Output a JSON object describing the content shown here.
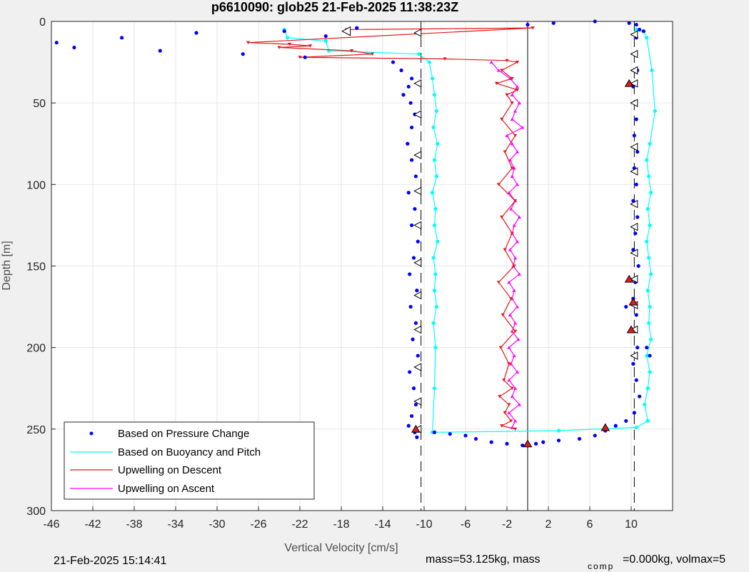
{
  "chart_data": {
    "type": "scatter",
    "title": "p6610090: glob25 21-Feb-2025 11:38:23Z",
    "xlabel": "Vertical Velocity [cm/s]",
    "ylabel": "Depth [m]",
    "xlim": [
      -46,
      14
    ],
    "ylim": [
      0,
      300
    ],
    "y_reversed": true,
    "grid": true,
    "legend_position": "bottom-left",
    "xticks": [
      -46,
      -42,
      -38,
      -34,
      -30,
      -26,
      -22,
      -18,
      -14,
      -10,
      -6,
      -2,
      2,
      6,
      10
    ],
    "yticks": [
      0,
      50,
      100,
      150,
      200,
      250,
      300
    ],
    "reference_lines": [
      {
        "x": -10.3,
        "style": "dashed"
      },
      {
        "x": 10.3,
        "style": "dashed"
      },
      {
        "x": 0,
        "style": "solid"
      }
    ],
    "series": [
      {
        "name": "Based on Pressure Change",
        "color": "#0000ff",
        "marker": "dot",
        "x": [
          -45.5,
          -43.8,
          -39.2,
          -35.5,
          -32,
          -27.5,
          -23.5,
          -21.5,
          -19.5,
          -17.5,
          -16.5,
          -13,
          -12.2,
          -11.2,
          -11.5,
          -12,
          -11.3,
          -10.9,
          -11.2,
          -11.6,
          -11.2,
          -10.8,
          -11.5,
          -10.9,
          -11.2,
          -10.6,
          -11.0,
          -11.4,
          -10.7,
          -11.3,
          -10.8,
          -11.1,
          -10.6,
          -11.4,
          -11.0,
          -10.8,
          -11.2,
          -11.5,
          -10.9,
          -10.7,
          -9,
          -7.5,
          -6,
          -5,
          -3.5,
          -2,
          -0.5,
          0,
          0.8,
          1.5,
          3,
          5,
          6.5,
          7.5,
          8.5,
          9.5,
          10.3,
          10.8,
          10.5,
          10.2,
          10.6,
          10.3,
          10.5,
          10.2,
          10.4,
          10.7,
          10.2,
          10.4,
          10.6,
          10.2,
          10.5,
          10.3,
          10.6,
          10.3,
          10.5,
          10.4,
          10.2,
          10.6,
          10.3,
          10.5,
          10.8,
          9.5,
          9.8,
          11.5,
          11.8,
          11.2,
          10.5,
          9.8,
          6.5,
          2.5,
          0
        ],
        "y": [
          13,
          16,
          10,
          18,
          7,
          20,
          6,
          22,
          9,
          6,
          4,
          25,
          30,
          35,
          40,
          45,
          50,
          57,
          65,
          75,
          85,
          95,
          105,
          115,
          125,
          135,
          145,
          155,
          165,
          175,
          185,
          195,
          205,
          215,
          225,
          235,
          242,
          248,
          252,
          255,
          252,
          253,
          254,
          256,
          258,
          259,
          260,
          260,
          259,
          258,
          257,
          256,
          254,
          251,
          248,
          245,
          240,
          230,
          220,
          210,
          200,
          190,
          180,
          170,
          160,
          150,
          140,
          130,
          120,
          110,
          100,
          90,
          80,
          70,
          60,
          50,
          40,
          30,
          20,
          10,
          5,
          175,
          158,
          200,
          205,
          6,
          2,
          1,
          0,
          1,
          2
        ]
      },
      {
        "name": "Based on Buoyancy and Pitch",
        "color": "#00ffff",
        "marker": "dot-line",
        "x": [
          -23.5,
          -23.2,
          -19.5,
          -19.2,
          -10.5,
          -9.5,
          -9.2,
          -9.0,
          -8.8,
          -9.1,
          -8.7,
          -9.0,
          -8.8,
          -9.2,
          -8.9,
          -9.0,
          -8.7,
          -9.1,
          -8.9,
          -9.0,
          -8.8,
          -9.1,
          -8.9,
          -9.0,
          -9.2,
          3.0,
          10.5,
          11.6,
          11.3,
          11.6,
          11.8,
          11.5,
          11.9,
          11.7,
          11.8,
          11.6,
          11.9,
          11.7,
          11.5,
          11.8,
          11.6,
          11.9,
          11.7,
          11.5,
          11.8,
          12.3,
          12.0,
          11.5,
          11.2,
          10.5
        ],
        "y": [
          5,
          10,
          12,
          18,
          20,
          25,
          35,
          45,
          55,
          65,
          75,
          85,
          95,
          105,
          115,
          125,
          135,
          145,
          155,
          165,
          175,
          185,
          200,
          225,
          252,
          251,
          249,
          245,
          235,
          225,
          215,
          205,
          195,
          185,
          175,
          165,
          155,
          145,
          135,
          125,
          115,
          105,
          95,
          85,
          75,
          55,
          30,
          10,
          6,
          5
        ]
      },
      {
        "name": "Upwelling on Descent",
        "color": "#e31a1c",
        "marker": "down-triangle",
        "x": [
          -17.5,
          0.5,
          -27,
          -23,
          -21,
          -24,
          -17,
          -15,
          -22,
          -8,
          -2,
          -1,
          -2.5,
          -1.5,
          -3,
          -1,
          -2,
          -1.5,
          -2.5,
          -1.2,
          -2.2,
          -1.5,
          -2.8,
          -1.2,
          -2.5,
          -1.5,
          -2.2,
          -1.3,
          -2.8,
          -1.6,
          -2.4,
          -1.2,
          -2.6,
          -1.8,
          -2.3,
          -1.5,
          -2.7,
          -1.8,
          -2.2,
          -1.6,
          -2.5,
          -1.2
        ],
        "y": [
          5,
          4,
          13,
          14,
          15,
          16,
          18,
          20,
          22,
          23,
          24,
          25,
          30,
          35,
          38,
          42,
          45,
          50,
          60,
          70,
          80,
          90,
          100,
          110,
          120,
          130,
          140,
          150,
          160,
          170,
          180,
          190,
          200,
          210,
          220,
          225,
          230,
          235,
          240,
          245,
          248,
          250
        ]
      },
      {
        "name": "Upwelling on Ascent",
        "color": "#ff00ff",
        "marker": "up-triangle",
        "x": [
          -1.5,
          -1.2,
          -1.8,
          -0.8,
          -1.5,
          -1.2,
          -1.8,
          -1.0,
          -1.6,
          -1.3,
          -1.8,
          -0.9,
          -1.5,
          -1.2,
          -1.7,
          -1.0,
          -1.5,
          -1.3,
          -1.8,
          -0.8,
          -1.4,
          -1.2,
          -1.7,
          -1.0,
          -1.5,
          -1.3,
          -0.8,
          -1.6,
          -1.2,
          -1.8,
          -1.0,
          -1.5,
          -1.3,
          -1.7,
          -1.0,
          -1.5,
          -2.0,
          -0.5,
          -1.5,
          -1.2,
          -0.8,
          -1.5,
          -1.0,
          -1.7,
          -2.8,
          -3.5
        ],
        "y": [
          249,
          245,
          240,
          235,
          230,
          225,
          220,
          215,
          210,
          205,
          200,
          195,
          190,
          185,
          180,
          175,
          170,
          165,
          160,
          155,
          150,
          145,
          140,
          135,
          130,
          125,
          120,
          115,
          110,
          105,
          100,
          95,
          90,
          85,
          80,
          75,
          70,
          65,
          60,
          55,
          50,
          45,
          40,
          35,
          30,
          25
        ]
      }
    ],
    "pressure_triangles": {
      "left": {
        "x": -10.6,
        "y": [
          7,
          38,
          57,
          82,
          104,
          125,
          148,
          168,
          189,
          212,
          233,
          250
        ]
      },
      "right": {
        "x": 10.3,
        "y": [
          8,
          20,
          30,
          38,
          50,
          77,
          92,
          112,
          126,
          142,
          158,
          174,
          189,
          205
        ]
      },
      "red_markers": [
        {
          "x": -10.8,
          "y": 250
        },
        {
          "x": 9.8,
          "y": 38
        },
        {
          "x": 9.8,
          "y": 158
        },
        {
          "x": 10.2,
          "y": 172
        },
        {
          "x": 10.0,
          "y": 189
        },
        {
          "x": 7.5,
          "y": 249
        },
        {
          "x": 0,
          "y": 259
        }
      ]
    },
    "legend": {
      "entries": [
        "Based on Pressure Change",
        "Based on Buoyancy and Pitch",
        "Upwelling on Descent",
        "Upwelling on Ascent"
      ]
    }
  },
  "footer": {
    "timestamp": "21-Feb-2025 15:14:41",
    "mass_text": "mass=53.125kg, mass",
    "comp_sub": "comp",
    "comp_text": "=0.000kg, volmax=5"
  }
}
